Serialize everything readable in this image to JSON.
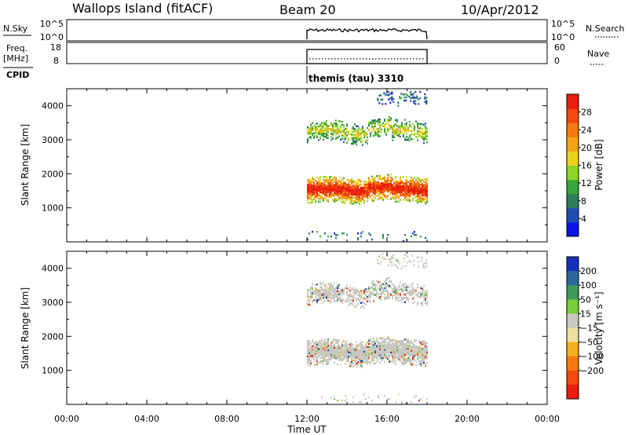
{
  "header": {
    "station": "Wallops Island (fitACF)",
    "beam": "Beam 20",
    "date": "10/Apr/2012"
  },
  "top_panels": {
    "nsky_label": "N.Sky",
    "nsky_ticks": [
      "10^5",
      "10^0"
    ],
    "nsky_right_ticks": [
      "10^5",
      "10^0"
    ],
    "nsearch_label": "N.Search",
    "freq_label": "Freq.",
    "freq_unit": "[MHz]",
    "freq_ticks": [
      "18",
      "8"
    ],
    "nave_ticks": [
      "60",
      "0"
    ],
    "nave_label": "Nave",
    "cpid_label": "CPID",
    "cpid_value": "themis (tau) 3310"
  },
  "x_axis": {
    "title": "Time UT",
    "ticks": [
      "00:00",
      "04:00",
      "08:00",
      "12:00",
      "16:00",
      "20:00",
      "00:00"
    ],
    "range_hours": [
      0,
      24
    ],
    "data_window_hours": [
      12,
      18
    ]
  },
  "chart_data": [
    {
      "type": "heatmap",
      "name": "power",
      "ylabel": "Slant Range [km]",
      "yticks": [
        1000,
        2000,
        3000,
        4000
      ],
      "ylim": [
        0,
        4500
      ],
      "colorbar_label": "Power [dB]",
      "colorbar_ticks": [
        4,
        8,
        12,
        16,
        20,
        24,
        28
      ],
      "colorbar_range": [
        0,
        32
      ],
      "colorbar_colors": [
        "#0a14e6",
        "#1e4fb0",
        "#2e7d5a",
        "#36a63a",
        "#8fd42a",
        "#e8d21c",
        "#f5a418",
        "#f57a14",
        "#f04a10",
        "#e81e0e"
      ],
      "bands": [
        {
          "t0": 12,
          "t1": 18,
          "r_center": 1550,
          "r_half": 380,
          "level": "strong",
          "wave": 90
        },
        {
          "t0": 12,
          "t1": 18,
          "r_center": 3250,
          "r_half": 300,
          "level": "medium",
          "wave": 160
        },
        {
          "t0": 15.5,
          "t1": 18,
          "r_center": 4250,
          "r_half": 200,
          "level": "weak",
          "wave": 60
        },
        {
          "t0": 12,
          "t1": 18,
          "r_center": 200,
          "r_half": 150,
          "level": "sparse",
          "wave": 0
        }
      ]
    },
    {
      "type": "heatmap",
      "name": "velocity",
      "ylabel": "Slant Range [km]",
      "yticks": [
        1000,
        2000,
        3000,
        4000
      ],
      "ylim": [
        0,
        4500
      ],
      "colorbar_label": "Velocity [m s⁻¹]",
      "colorbar_ticks": [
        "200",
        "100",
        "50",
        "15",
        "−15",
        "−50",
        "−100",
        "−200"
      ],
      "colorbar_colors": [
        "#1530b8",
        "#2c6a9e",
        "#3c9a5a",
        "#76cc3c",
        "#c8c8c0",
        "#ece0a0",
        "#f5b020",
        "#f57a14",
        "#f04a10",
        "#e81e0e"
      ],
      "bands": [
        {
          "t0": 12,
          "t1": 18,
          "r_center": 1550,
          "r_half": 380,
          "level": "strong",
          "wave": 90
        },
        {
          "t0": 12,
          "t1": 18,
          "r_center": 3250,
          "r_half": 300,
          "level": "medium",
          "wave": 160
        },
        {
          "t0": 15.5,
          "t1": 18,
          "r_center": 4250,
          "r_half": 200,
          "level": "weak",
          "wave": 60
        },
        {
          "t0": 12,
          "t1": 18,
          "r_center": 200,
          "r_half": 150,
          "level": "sparse",
          "wave": 0
        }
      ]
    }
  ]
}
